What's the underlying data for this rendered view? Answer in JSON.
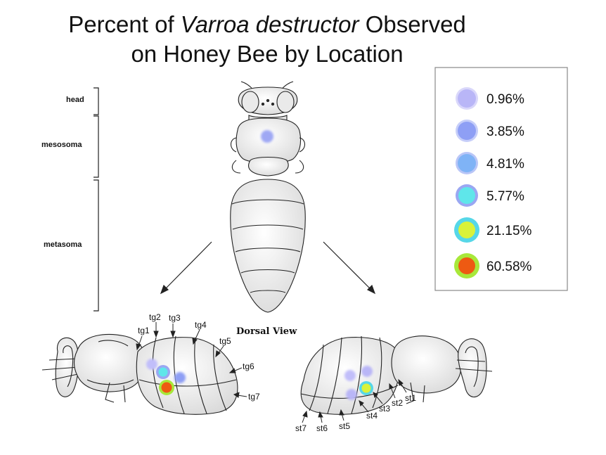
{
  "title": {
    "line1_pre": "Percent of ",
    "line1_italic": "Varroa destructor",
    "line1_post": " Observed",
    "line2": "on Honey Bee by Location"
  },
  "regions": {
    "head": "head",
    "mesosoma": "mesosoma",
    "metasoma": "metasoma"
  },
  "dorsal_view": "Dorsal View",
  "left_labels": [
    "tg1",
    "tg2",
    "tg3",
    "tg4",
    "tg5",
    "tg6",
    "tg7"
  ],
  "right_labels": [
    "st1",
    "st2",
    "st3",
    "st4",
    "st5",
    "st6",
    "st7"
  ],
  "legend": [
    {
      "label": "0.96%",
      "inner": "#b9b6f7",
      "outer": "#cfcdf9"
    },
    {
      "label": "3.85%",
      "inner": "#8e9ff5",
      "outer": "#b8c2f8"
    },
    {
      "label": "4.81%",
      "inner": "#7fb3f6",
      "outer": "#a8b8f5"
    },
    {
      "label": "5.77%",
      "inner": "#5fe6ea",
      "outer": "#9aa7f2"
    },
    {
      "label": "21.15%",
      "inner": "#d9f23a",
      "outer": "#56d7e8"
    },
    {
      "label": "60.58%",
      "inner": "#ee5a12",
      "outer": "#a8e83a"
    }
  ],
  "colors": {
    "line": "#222222",
    "legend_border": "#888888"
  }
}
